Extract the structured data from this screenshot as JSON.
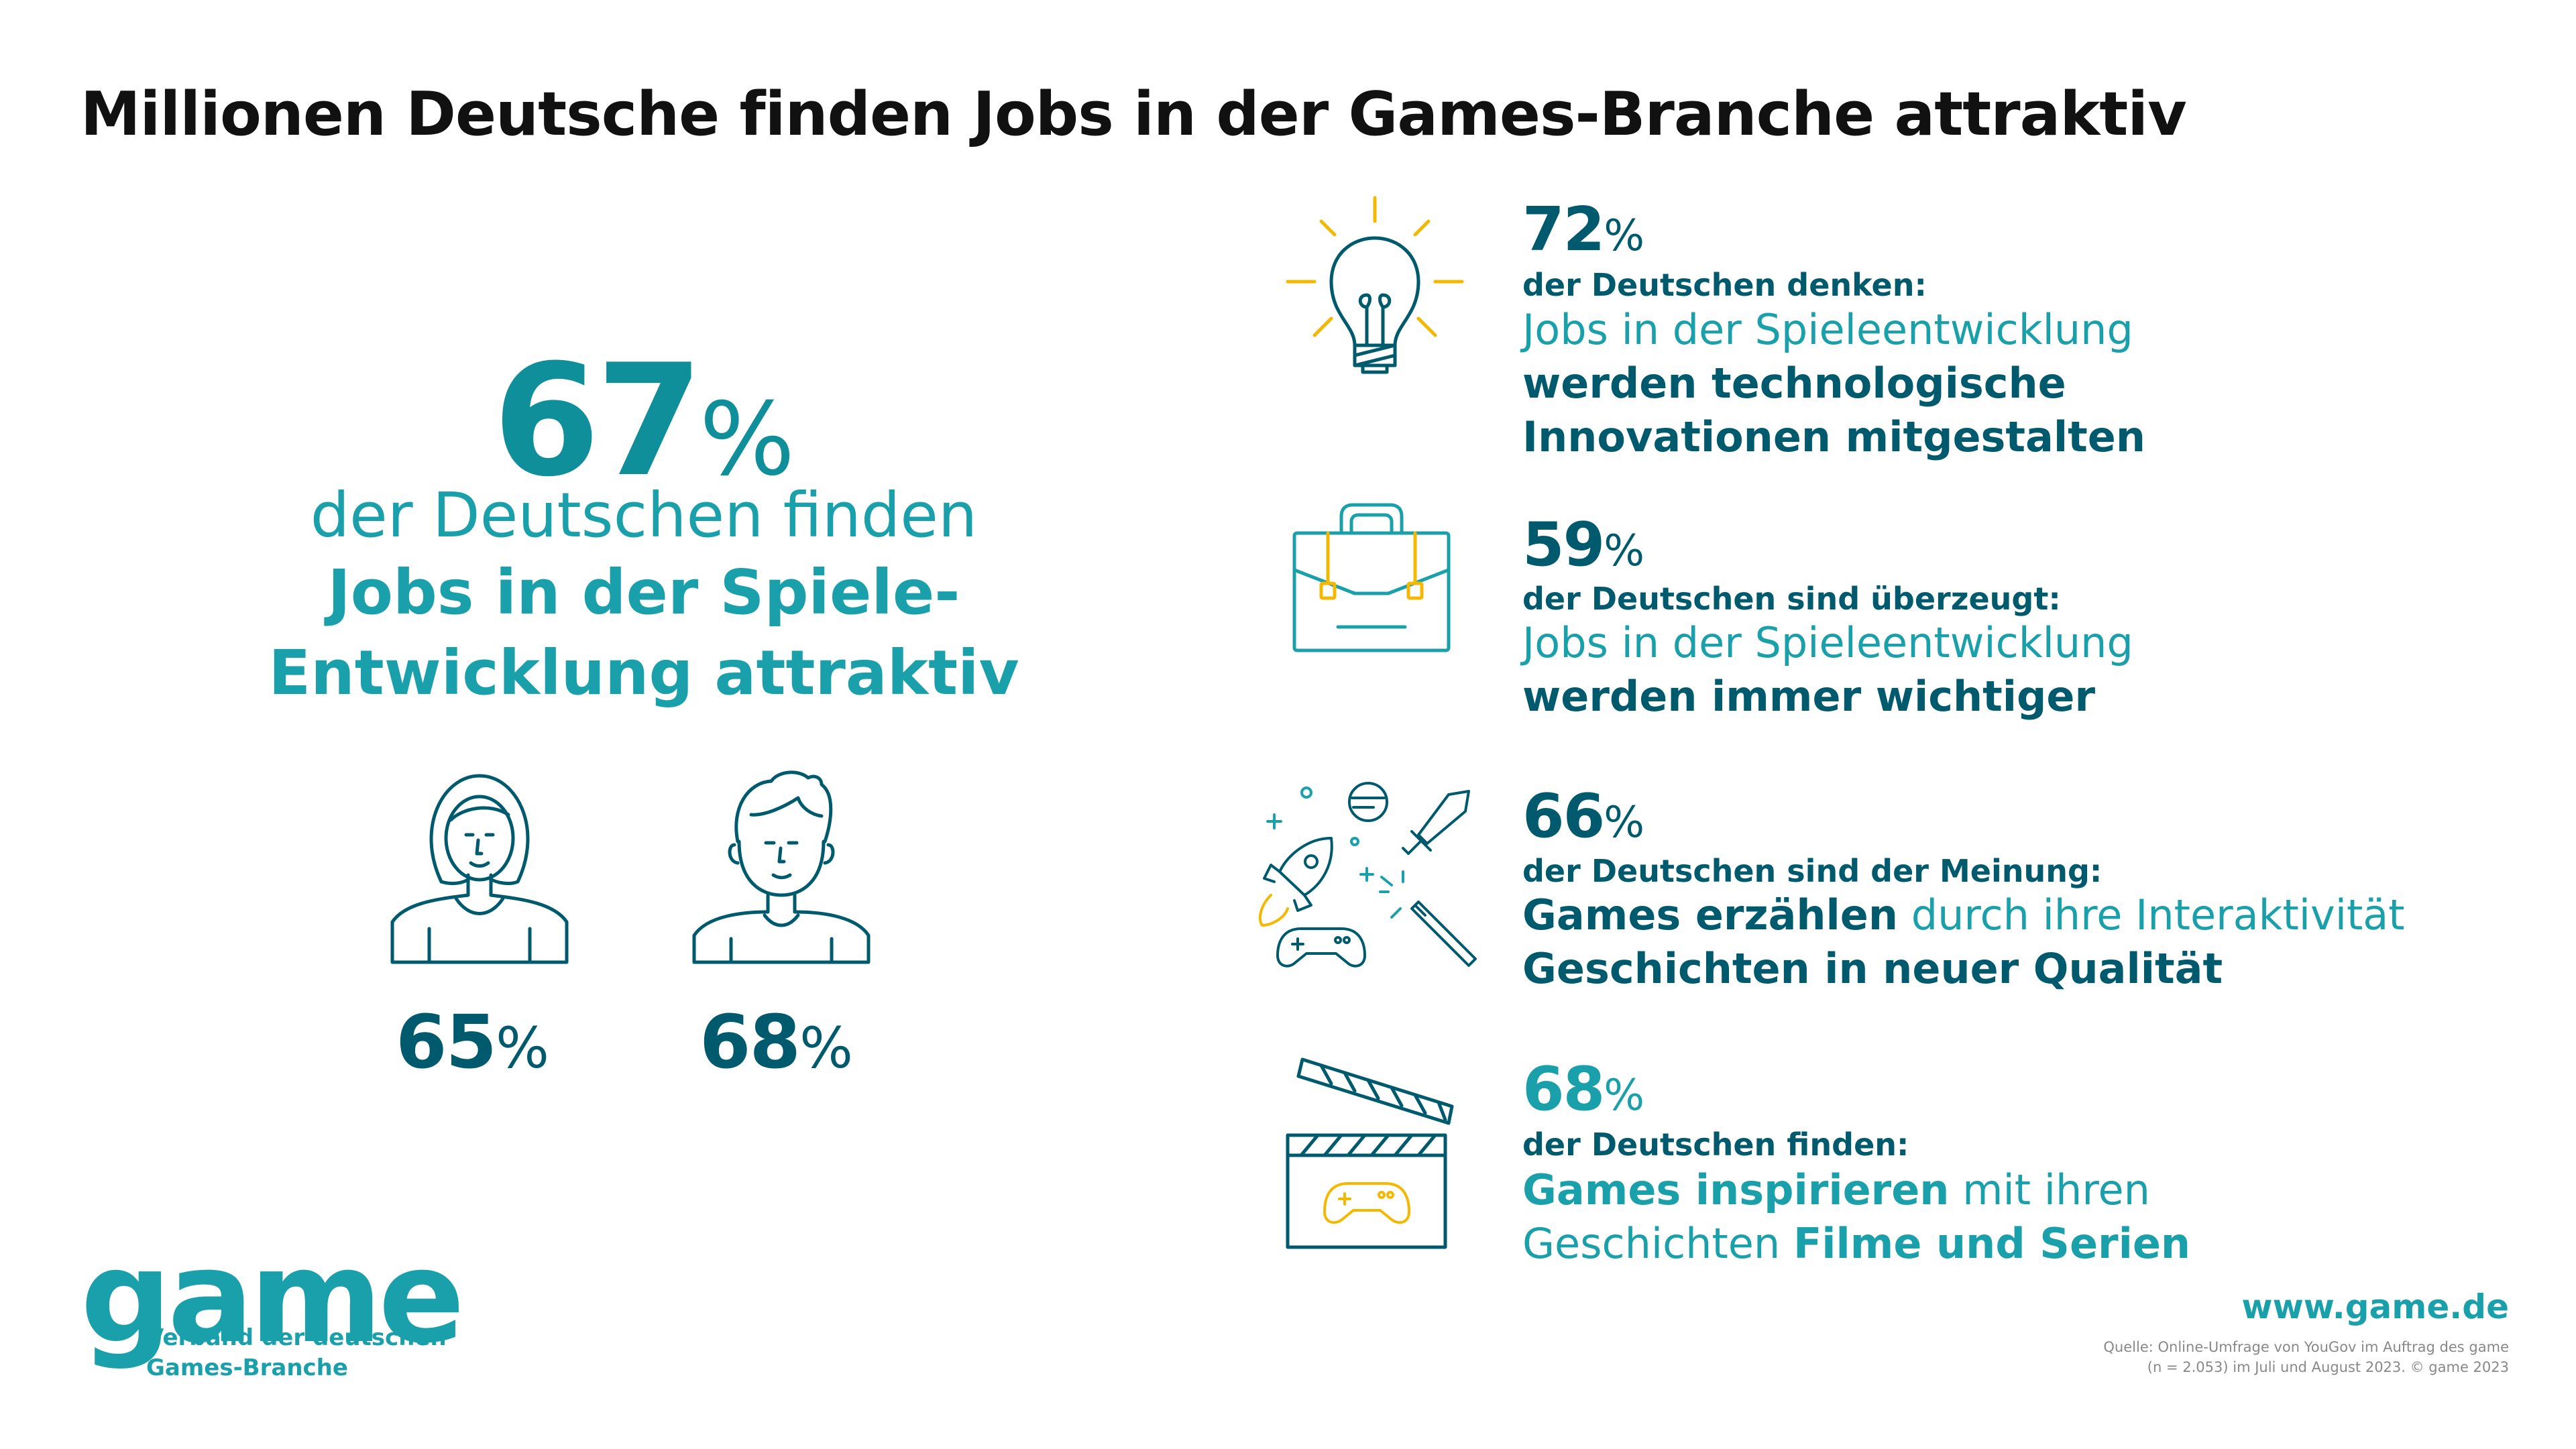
{
  "title": "Millionen Deutsche finden Jobs in der Games-Branche attraktiv",
  "hero": {
    "value": "67",
    "unit": "%",
    "line1": "der Deutschen finden",
    "line2": "Jobs in der Spiele-",
    "line3": "Entwicklung attraktiv"
  },
  "persons": [
    {
      "icon": "woman-icon",
      "value": "65",
      "unit": "%"
    },
    {
      "icon": "man-icon",
      "value": "68",
      "unit": "%"
    }
  ],
  "stats": [
    {
      "icon": "lightbulb-icon",
      "value": "72",
      "unit": "%",
      "intro": "der Deutschen denken:",
      "l1_normal": "Jobs in der Spieleentwicklung",
      "l2_bold": "werden technologische",
      "l3_bold": "Innovationen mitgestalten"
    },
    {
      "icon": "briefcase-icon",
      "value": "59",
      "unit": "%",
      "intro": "der Deutschen sind überzeugt:",
      "l1_normal": "Jobs in der Spieleentwicklung",
      "l2_bold": "werden immer wichtiger"
    },
    {
      "icon": "game-elements-icon",
      "value": "66",
      "unit": "%",
      "intro": "der Deutschen sind der Meinung:",
      "l1_bold": "Games erzählen",
      "l1_normal": " durch ihre Interaktivität",
      "l2_bold": "Geschichten in neuer Qualität"
    },
    {
      "icon": "clapperboard-icon",
      "value": "68",
      "unit": "%",
      "intro": "der Deutschen finden:",
      "l1_bold": "Games inspirieren",
      "l1_normal": " mit ihren",
      "l2_normal": "Geschichten ",
      "l2_bold": "Filme und Serien"
    }
  ],
  "logo": {
    "word": "game",
    "sub1": "Verband der deutschen",
    "sub2": "Games-Branche"
  },
  "url": "www.game.de",
  "source": {
    "line1": "Quelle: Online-Umfrage von YouGov im Auftrag des game",
    "line2": "(n = 2.053) im Juli und August 2023. © game 2023"
  },
  "colors": {
    "dark_teal": "#005a6e",
    "teal": "#1aa0aa",
    "accent_yellow": "#f5b800",
    "title": "#111111"
  }
}
